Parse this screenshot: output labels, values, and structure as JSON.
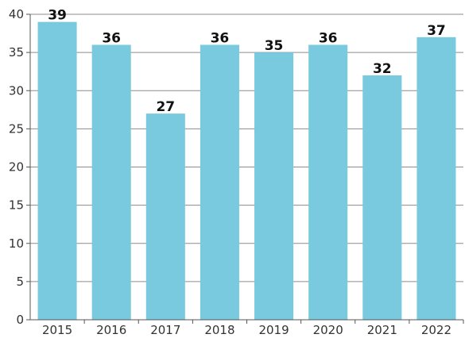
{
  "chart_data": {
    "type": "bar",
    "categories": [
      "2015",
      "2016",
      "2017",
      "2018",
      "2019",
      "2020",
      "2021",
      "2022"
    ],
    "values": [
      39,
      36,
      27,
      36,
      35,
      36,
      32,
      37
    ],
    "data_labels": [
      "39",
      "36",
      "27",
      "36",
      "35",
      "36",
      "32",
      "37"
    ],
    "title": "",
    "xlabel": "",
    "ylabel": "",
    "ylim": [
      0,
      40
    ],
    "yticks": [
      0,
      5,
      10,
      15,
      20,
      25,
      30,
      35,
      40
    ],
    "ytick_labels": [
      "0",
      "5",
      "10",
      "15",
      "20",
      "25",
      "30",
      "35",
      "40"
    ],
    "grid": true,
    "legend": "none",
    "colors": {
      "bar": "#79c9df",
      "grid": "#8c8c8c",
      "axis": "#555555",
      "label": "#111111"
    }
  }
}
